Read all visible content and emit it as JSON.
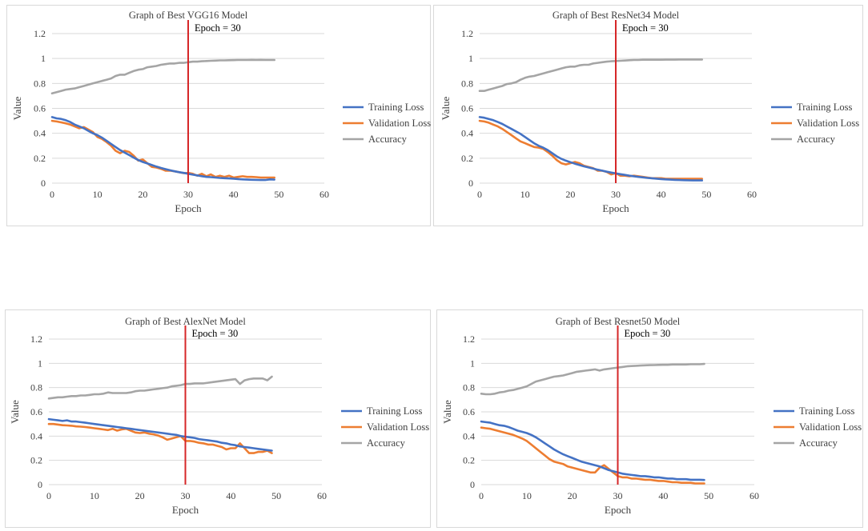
{
  "colors": {
    "training": "#4472C4",
    "validation": "#ED7D31",
    "accuracy": "#A5A5A5",
    "marker": "#D62728",
    "grid": "#D9D9D9",
    "frame": "#D9D9D9"
  },
  "chart_data": [
    {
      "panel": "A",
      "type": "line",
      "title": "Graph of Best VGG16 Model",
      "xlabel": "Epoch",
      "ylabel": "Value",
      "xlim": [
        0,
        60
      ],
      "ylim": [
        0,
        1.2
      ],
      "xticks": [
        0,
        10,
        20,
        30,
        40,
        50,
        60
      ],
      "yticks": [
        0,
        0.2,
        0.4,
        0.6,
        0.8,
        1,
        1.2
      ],
      "xtick_labels": [
        "0",
        "10",
        "20",
        "30",
        "40",
        "50",
        "60"
      ],
      "ytick_labels": [
        "0",
        "0.2",
        "0.4",
        "0.6",
        "0.8",
        "1",
        "1.2"
      ],
      "marker": {
        "x": 30,
        "label": "Epoch = 30"
      },
      "legend": [
        "Training Loss",
        "Validation Loss",
        "Accuracy"
      ],
      "series": [
        {
          "name": "Training Loss",
          "key": "training",
          "values": [
            0.53,
            0.52,
            0.515,
            0.505,
            0.49,
            0.47,
            0.455,
            0.44,
            0.42,
            0.4,
            0.385,
            0.365,
            0.34,
            0.315,
            0.29,
            0.265,
            0.245,
            0.225,
            0.205,
            0.185,
            0.17,
            0.158,
            0.145,
            0.133,
            0.122,
            0.112,
            0.103,
            0.095,
            0.088,
            0.082,
            0.075,
            0.068,
            0.062,
            0.056,
            0.05,
            0.048,
            0.045,
            0.042,
            0.04,
            0.038,
            0.036,
            0.033,
            0.03,
            0.028,
            0.027,
            0.026,
            0.025,
            0.025,
            0.03,
            0.028
          ]
        },
        {
          "name": "Validation Loss",
          "key": "validation",
          "values": [
            0.5,
            0.495,
            0.488,
            0.48,
            0.47,
            0.455,
            0.44,
            0.45,
            0.43,
            0.41,
            0.37,
            0.355,
            0.33,
            0.3,
            0.26,
            0.24,
            0.26,
            0.25,
            0.22,
            0.18,
            0.19,
            0.16,
            0.13,
            0.125,
            0.115,
            0.1,
            0.1,
            0.095,
            0.088,
            0.08,
            0.082,
            0.075,
            0.06,
            0.075,
            0.055,
            0.07,
            0.05,
            0.06,
            0.05,
            0.06,
            0.045,
            0.05,
            0.055,
            0.05,
            0.05,
            0.048,
            0.045,
            0.045,
            0.045,
            0.045
          ]
        },
        {
          "name": "Accuracy",
          "key": "accuracy",
          "values": [
            0.72,
            0.73,
            0.74,
            0.75,
            0.755,
            0.76,
            0.77,
            0.78,
            0.79,
            0.8,
            0.81,
            0.82,
            0.83,
            0.84,
            0.86,
            0.87,
            0.87,
            0.885,
            0.9,
            0.91,
            0.915,
            0.93,
            0.935,
            0.94,
            0.95,
            0.955,
            0.96,
            0.96,
            0.965,
            0.965,
            0.97,
            0.975,
            0.975,
            0.978,
            0.98,
            0.982,
            0.983,
            0.985,
            0.985,
            0.986,
            0.987,
            0.988,
            0.988,
            0.988,
            0.989,
            0.988,
            0.989,
            0.988,
            0.988,
            0.988
          ]
        }
      ]
    },
    {
      "panel": "B",
      "type": "line",
      "title": "Graph of Best ResNet34 Model",
      "xlabel": "Epoch",
      "ylabel": "Value",
      "xlim": [
        0,
        60
      ],
      "ylim": [
        0,
        1.2
      ],
      "xticks": [
        0,
        10,
        20,
        30,
        40,
        50,
        60
      ],
      "yticks": [
        0,
        0.2,
        0.4,
        0.6,
        0.8,
        1,
        1.2
      ],
      "xtick_labels": [
        "0",
        "10",
        "20",
        "30",
        "40",
        "50",
        "60"
      ],
      "ytick_labels": [
        "0",
        "0.2",
        "0.4",
        "0.6",
        "0.8",
        "1",
        "1.2"
      ],
      "marker": {
        "x": 30,
        "label": "Epoch = 30"
      },
      "legend": [
        "Training Loss",
        "Validation Loss",
        "Accuracy"
      ],
      "series": [
        {
          "name": "Training Loss",
          "key": "training",
          "values": [
            0.53,
            0.525,
            0.515,
            0.505,
            0.49,
            0.475,
            0.455,
            0.435,
            0.415,
            0.395,
            0.37,
            0.345,
            0.32,
            0.3,
            0.285,
            0.265,
            0.24,
            0.215,
            0.195,
            0.18,
            0.168,
            0.156,
            0.145,
            0.135,
            0.126,
            0.117,
            0.108,
            0.1,
            0.092,
            0.085,
            0.078,
            0.072,
            0.066,
            0.06,
            0.055,
            0.05,
            0.046,
            0.042,
            0.039,
            0.036,
            0.033,
            0.03,
            0.028,
            0.026,
            0.025,
            0.024,
            0.023,
            0.022,
            0.022,
            0.022
          ]
        },
        {
          "name": "Validation Loss",
          "key": "validation",
          "values": [
            0.5,
            0.495,
            0.485,
            0.47,
            0.455,
            0.435,
            0.41,
            0.385,
            0.36,
            0.335,
            0.32,
            0.305,
            0.29,
            0.285,
            0.275,
            0.25,
            0.22,
            0.185,
            0.16,
            0.15,
            0.16,
            0.17,
            0.16,
            0.14,
            0.13,
            0.12,
            0.1,
            0.1,
            0.09,
            0.07,
            0.08,
            0.06,
            0.06,
            0.055,
            0.06,
            0.055,
            0.05,
            0.045,
            0.04,
            0.04,
            0.04,
            0.035,
            0.035,
            0.035,
            0.035,
            0.035,
            0.035,
            0.035,
            0.035,
            0.035
          ]
        },
        {
          "name": "Accuracy",
          "key": "accuracy",
          "values": [
            0.74,
            0.74,
            0.75,
            0.76,
            0.77,
            0.78,
            0.795,
            0.8,
            0.81,
            0.83,
            0.845,
            0.855,
            0.86,
            0.87,
            0.88,
            0.89,
            0.9,
            0.91,
            0.92,
            0.93,
            0.935,
            0.935,
            0.945,
            0.95,
            0.95,
            0.96,
            0.965,
            0.97,
            0.975,
            0.978,
            0.98,
            0.982,
            0.984,
            0.986,
            0.988,
            0.988,
            0.99,
            0.99,
            0.99,
            0.99,
            0.99,
            0.991,
            0.991,
            0.991,
            0.992,
            0.992,
            0.992,
            0.992,
            0.992,
            0.992
          ]
        }
      ]
    },
    {
      "panel": "C",
      "type": "line",
      "title": "Graph of Best AlexNet Model",
      "xlabel": "Epoch",
      "ylabel": "Value",
      "xlim": [
        0,
        60
      ],
      "ylim": [
        0,
        1.2
      ],
      "xticks": [
        0,
        10,
        20,
        30,
        40,
        50,
        60
      ],
      "yticks": [
        0,
        0.2,
        0.4,
        0.6,
        0.8,
        1,
        1.2
      ],
      "xtick_labels": [
        "0",
        "10",
        "20",
        "30",
        "40",
        "50",
        "60"
      ],
      "ytick_labels": [
        "0",
        "0.2",
        "0.4",
        "0.6",
        "0.8",
        "1",
        "1.2"
      ],
      "marker": {
        "x": 30,
        "label": "Epoch = 30"
      },
      "legend": [
        "Training Loss",
        "Validation Loss",
        "Accuracy"
      ],
      "series": [
        {
          "name": "Training Loss",
          "key": "training",
          "values": [
            0.54,
            0.535,
            0.53,
            0.525,
            0.53,
            0.52,
            0.52,
            0.515,
            0.51,
            0.505,
            0.5,
            0.495,
            0.49,
            0.485,
            0.48,
            0.475,
            0.47,
            0.465,
            0.46,
            0.455,
            0.45,
            0.445,
            0.44,
            0.435,
            0.43,
            0.425,
            0.42,
            0.415,
            0.41,
            0.4,
            0.395,
            0.39,
            0.385,
            0.375,
            0.37,
            0.365,
            0.36,
            0.355,
            0.345,
            0.34,
            0.33,
            0.325,
            0.315,
            0.31,
            0.305,
            0.3,
            0.295,
            0.29,
            0.285,
            0.28
          ]
        },
        {
          "name": "Validation Loss",
          "key": "validation",
          "values": [
            0.5,
            0.5,
            0.495,
            0.49,
            0.488,
            0.485,
            0.48,
            0.478,
            0.475,
            0.47,
            0.465,
            0.46,
            0.455,
            0.45,
            0.46,
            0.445,
            0.455,
            0.46,
            0.445,
            0.43,
            0.425,
            0.43,
            0.42,
            0.415,
            0.405,
            0.39,
            0.37,
            0.38,
            0.39,
            0.4,
            0.36,
            0.36,
            0.355,
            0.345,
            0.34,
            0.33,
            0.33,
            0.32,
            0.31,
            0.29,
            0.3,
            0.3,
            0.34,
            0.3,
            0.26,
            0.26,
            0.27,
            0.27,
            0.28,
            0.26
          ]
        },
        {
          "name": "Accuracy",
          "key": "accuracy",
          "values": [
            0.71,
            0.715,
            0.72,
            0.72,
            0.725,
            0.73,
            0.73,
            0.735,
            0.735,
            0.74,
            0.745,
            0.745,
            0.75,
            0.76,
            0.755,
            0.755,
            0.755,
            0.755,
            0.76,
            0.77,
            0.775,
            0.775,
            0.78,
            0.785,
            0.79,
            0.795,
            0.8,
            0.81,
            0.815,
            0.82,
            0.83,
            0.83,
            0.835,
            0.835,
            0.835,
            0.84,
            0.845,
            0.85,
            0.855,
            0.86,
            0.865,
            0.87,
            0.83,
            0.86,
            0.87,
            0.875,
            0.875,
            0.875,
            0.86,
            0.89
          ]
        }
      ]
    },
    {
      "panel": "D",
      "type": "line",
      "title": "Graph of Best Resnet50 Model",
      "xlabel": "Epoch",
      "ylabel": "Value",
      "xlim": [
        0,
        60
      ],
      "ylim": [
        0,
        1.2
      ],
      "xticks": [
        0,
        10,
        20,
        30,
        40,
        50,
        60
      ],
      "yticks": [
        0,
        0.2,
        0.4,
        0.6,
        0.8,
        1,
        1.2
      ],
      "xtick_labels": [
        "0",
        "10",
        "20",
        "30",
        "40",
        "50",
        "60"
      ],
      "ytick_labels": [
        "0",
        "0.2",
        "0.4",
        "0.6",
        "0.8",
        "1",
        "1.2"
      ],
      "marker": {
        "x": 30,
        "label": "Epoch = 30"
      },
      "legend": [
        "Training Loss",
        "Validation Loss",
        "Accuracy"
      ],
      "series": [
        {
          "name": "Training Loss",
          "key": "training",
          "values": [
            0.52,
            0.515,
            0.51,
            0.5,
            0.49,
            0.485,
            0.475,
            0.46,
            0.445,
            0.435,
            0.425,
            0.41,
            0.39,
            0.365,
            0.34,
            0.315,
            0.29,
            0.27,
            0.25,
            0.235,
            0.22,
            0.205,
            0.19,
            0.18,
            0.17,
            0.16,
            0.15,
            0.135,
            0.12,
            0.11,
            0.1,
            0.09,
            0.085,
            0.08,
            0.075,
            0.07,
            0.07,
            0.065,
            0.06,
            0.06,
            0.055,
            0.05,
            0.05,
            0.045,
            0.045,
            0.045,
            0.04,
            0.04,
            0.04,
            0.038
          ]
        },
        {
          "name": "Validation Loss",
          "key": "validation",
          "values": [
            0.47,
            0.465,
            0.46,
            0.45,
            0.44,
            0.43,
            0.42,
            0.41,
            0.395,
            0.38,
            0.36,
            0.33,
            0.3,
            0.27,
            0.24,
            0.21,
            0.19,
            0.18,
            0.17,
            0.15,
            0.14,
            0.13,
            0.12,
            0.11,
            0.1,
            0.1,
            0.14,
            0.16,
            0.13,
            0.1,
            0.07,
            0.06,
            0.06,
            0.05,
            0.05,
            0.045,
            0.04,
            0.04,
            0.035,
            0.03,
            0.03,
            0.025,
            0.02,
            0.02,
            0.015,
            0.015,
            0.015,
            0.01,
            0.01,
            0.01
          ]
        },
        {
          "name": "Accuracy",
          "key": "accuracy",
          "values": [
            0.75,
            0.745,
            0.745,
            0.75,
            0.76,
            0.765,
            0.775,
            0.78,
            0.79,
            0.8,
            0.81,
            0.83,
            0.85,
            0.86,
            0.87,
            0.88,
            0.89,
            0.895,
            0.9,
            0.91,
            0.92,
            0.93,
            0.935,
            0.94,
            0.945,
            0.95,
            0.94,
            0.95,
            0.955,
            0.96,
            0.965,
            0.97,
            0.975,
            0.978,
            0.98,
            0.982,
            0.984,
            0.985,
            0.986,
            0.987,
            0.988,
            0.988,
            0.99,
            0.99,
            0.99,
            0.99,
            0.992,
            0.992,
            0.992,
            0.995
          ]
        }
      ]
    }
  ]
}
